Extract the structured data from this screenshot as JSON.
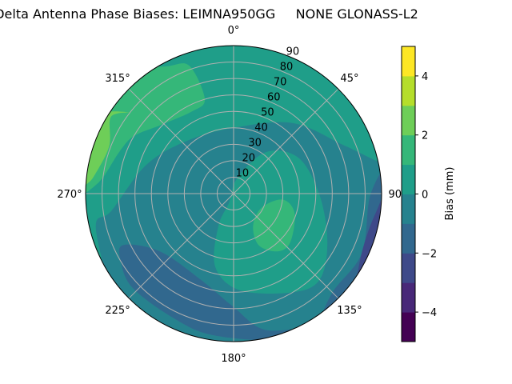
{
  "chart_data": {
    "type": "contour",
    "projection": "polar",
    "title": "Delta Antenna Phase Biases: LEIMNA950GG     NONE GLONASS-L2",
    "angular_direction": "clockwise",
    "angular_zero": "top",
    "angular_ticks": [
      "0°",
      "45°",
      "90°",
      "135°",
      "180°",
      "225°",
      "270°",
      "315°"
    ],
    "angular_tick_values": [
      0,
      45,
      90,
      135,
      180,
      225,
      270,
      315
    ],
    "radial_ticks": [
      "10",
      "20",
      "30",
      "40",
      "50",
      "60",
      "70",
      "80",
      "90"
    ],
    "radial_tick_values": [
      10,
      20,
      30,
      40,
      50,
      60,
      70,
      80,
      90
    ],
    "radial_range": [
      0,
      90
    ],
    "grid": true,
    "colormap": "viridis",
    "levels": [
      -5,
      -4,
      -3,
      -2,
      -1,
      0,
      1,
      2,
      3,
      4,
      5
    ],
    "band_colors": [
      "#440154",
      "#482878",
      "#3e4989",
      "#31688e",
      "#26828e",
      "#1f9e89",
      "#35b779",
      "#6ece58",
      "#b5de2b",
      "#fde725"
    ],
    "colorbar": {
      "label": "Bias (mm)",
      "ticks": [
        "−4",
        "−2",
        "0",
        "2",
        "4"
      ],
      "tick_values": [
        -4,
        -2,
        0,
        2,
        4
      ],
      "range": [
        -5,
        5
      ]
    },
    "background_band": 4,
    "regions": [
      {
        "band": 5,
        "note_points": "azimuth_deg, zenith_deg",
        "points": [
          [
            79,
            95
          ],
          [
            67,
            74
          ],
          [
            40,
            56
          ],
          [
            0,
            40
          ],
          [
            318,
            43
          ],
          [
            288,
            56
          ],
          [
            262,
            75
          ],
          [
            257,
            86
          ],
          [
            234,
            95
          ],
          [
            250,
            95
          ],
          [
            270,
            95
          ],
          [
            290,
            95
          ],
          [
            310,
            95
          ],
          [
            330,
            95
          ],
          [
            350,
            95
          ],
          [
            10,
            95
          ],
          [
            30,
            95
          ],
          [
            50,
            95
          ],
          [
            70,
            95
          ]
        ]
      },
      {
        "band": 5,
        "points": [
          [
            13,
            9.5
          ],
          [
            38,
            32
          ],
          [
            61,
            45
          ],
          [
            90,
            52
          ],
          [
            117,
            64
          ],
          [
            135,
            74
          ],
          [
            149,
            70
          ],
          [
            176,
            59
          ],
          [
            194,
            46
          ],
          [
            205,
            22
          ],
          [
            207,
            6
          ]
        ]
      },
      {
        "band": 3,
        "points": [
          [
            245,
            74
          ],
          [
            232,
            57
          ],
          [
            201,
            56
          ],
          [
            180,
            69
          ],
          [
            167,
            85
          ],
          [
            149,
            95
          ],
          [
            160,
            95
          ],
          [
            188,
            87
          ],
          [
            206,
            84
          ],
          [
            227,
            84
          ],
          [
            239,
            80
          ]
        ]
      },
      {
        "band": 3,
        "points": [
          [
            80,
            95
          ],
          [
            91,
            83
          ],
          [
            115,
            86
          ],
          [
            135,
            85
          ],
          [
            146,
            95
          ],
          [
            130,
            95
          ],
          [
            110,
            95
          ],
          [
            95,
            95
          ]
        ]
      },
      {
        "band": 2,
        "points": [
          [
            86,
            95
          ],
          [
            96,
            88
          ],
          [
            106,
            85
          ],
          [
            118,
            87
          ],
          [
            128,
            95
          ],
          [
            115,
            95
          ],
          [
            100,
            95
          ]
        ]
      },
      {
        "band": 6,
        "points": [
          [
            270,
            95
          ],
          [
            275,
            82
          ],
          [
            290,
            74
          ],
          [
            300,
            70
          ],
          [
            313,
            61
          ],
          [
            333,
            56
          ],
          [
            343,
            60
          ],
          [
            341,
            82
          ],
          [
            333,
            87
          ],
          [
            320,
            95
          ],
          [
            300,
            95
          ],
          [
            285,
            95
          ]
        ]
      },
      {
        "band": 7,
        "points": [
          [
            274,
            89
          ],
          [
            278,
            85
          ],
          [
            291,
            81
          ],
          [
            302,
            88
          ],
          [
            308,
            80
          ],
          [
            300,
            95
          ],
          [
            285,
            95
          ],
          [
            272,
            95
          ]
        ]
      },
      {
        "band": 6,
        "points": [
          [
            149,
            23
          ],
          [
            117,
            19
          ],
          [
            97,
            30
          ],
          [
            108,
            39
          ],
          [
            131,
            45.5
          ],
          [
            143,
            44
          ],
          [
            154,
            35
          ]
        ]
      }
    ]
  }
}
